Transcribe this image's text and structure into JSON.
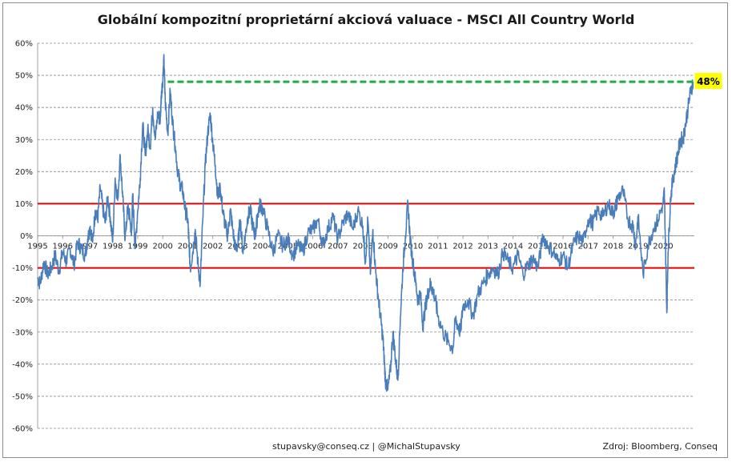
{
  "chart_data": {
    "type": "line",
    "title": "Globální kompozitní proprietární akciová valuace - MSCI All Country World",
    "xlabel": "",
    "ylabel": "",
    "x_ticks": [
      "1995",
      "1996",
      "1997",
      "1998",
      "1999",
      "2000",
      "2001",
      "2002",
      "2003",
      "2004",
      "2005",
      "2006",
      "2007",
      "2008",
      "2009",
      "2010",
      "2011",
      "2012",
      "2013",
      "2014",
      "2015",
      "2016",
      "2017",
      "2018",
      "2019",
      "2020"
    ],
    "xlim": [
      1995.0,
      2021.25
    ],
    "ylim": [
      -60,
      60
    ],
    "y_ticks": [
      60,
      50,
      40,
      30,
      20,
      10,
      0,
      -10,
      -20,
      -30,
      -40,
      -50,
      -60
    ],
    "y_tick_labels": [
      "60%",
      "50%",
      "40%",
      "30%",
      "20%",
      "10%",
      "0%",
      "-10%",
      "-20%",
      "-30%",
      "-40%",
      "-50%",
      "-60%"
    ],
    "grid": true,
    "series": [
      {
        "color": "#4a7ebb",
        "x": [
          1995.0,
          1995.1,
          1995.25,
          1995.4,
          1995.55,
          1995.7,
          1995.85,
          1996.0,
          1996.15,
          1996.3,
          1996.45,
          1996.6,
          1996.75,
          1996.9,
          1997.0,
          1997.1,
          1997.2,
          1997.3,
          1997.4,
          1997.5,
          1997.6,
          1997.7,
          1997.8,
          1997.9,
          1998.0,
          1998.1,
          1998.2,
          1998.3,
          1998.4,
          1998.5,
          1998.6,
          1998.7,
          1998.75,
          1998.8,
          1998.9,
          1999.0,
          1999.1,
          1999.2,
          1999.3,
          1999.4,
          1999.5,
          1999.6,
          1999.7,
          1999.8,
          1999.9,
          1999.95,
          2000.0,
          2000.05,
          2000.1,
          2000.2,
          2000.3,
          2000.4,
          2000.5,
          2000.6,
          2000.7,
          2000.8,
          2000.9,
          2001.0,
          2001.05,
          2001.1,
          2001.2,
          2001.3,
          2001.4,
          2001.5,
          2001.6,
          2001.7,
          2001.8,
          2001.9,
          2002.0,
          2002.1,
          2002.2,
          2002.3,
          2002.4,
          2002.5,
          2002.6,
          2002.7,
          2002.8,
          2002.9,
          2003.0,
          2003.1,
          2003.2,
          2003.3,
          2003.4,
          2003.5,
          2003.6,
          2003.7,
          2003.8,
          2003.9,
          2004.0,
          2004.2,
          2004.4,
          2004.6,
          2004.8,
          2005.0,
          2005.2,
          2005.4,
          2005.6,
          2005.8,
          2006.0,
          2006.2,
          2006.4,
          2006.6,
          2006.8,
          2007.0,
          2007.2,
          2007.4,
          2007.6,
          2007.8,
          2008.0,
          2008.1,
          2008.2,
          2008.3,
          2008.4,
          2008.5,
          2008.6,
          2008.7,
          2008.8,
          2008.85,
          2008.9,
          2009.0,
          2009.1,
          2009.2,
          2009.3,
          2009.4,
          2009.5,
          2009.6,
          2009.7,
          2009.8,
          2009.9,
          2010.0,
          2010.1,
          2010.2,
          2010.3,
          2010.4,
          2010.5,
          2010.6,
          2010.7,
          2010.8,
          2010.9,
          2011.0,
          2011.2,
          2011.4,
          2011.6,
          2011.7,
          2011.8,
          2011.9,
          2012.0,
          2012.2,
          2012.4,
          2012.6,
          2012.8,
          2013.0,
          2013.2,
          2013.4,
          2013.6,
          2013.8,
          2014.0,
          2014.2,
          2014.4,
          2014.6,
          2014.8,
          2015.0,
          2015.2,
          2015.4,
          2015.6,
          2015.8,
          2016.0,
          2016.2,
          2016.4,
          2016.6,
          2016.8,
          2017.0,
          2017.2,
          2017.4,
          2017.6,
          2017.8,
          2018.0,
          2018.1,
          2018.2,
          2018.4,
          2018.6,
          2018.8,
          2018.9,
          2019.0,
          2019.2,
          2019.4,
          2019.6,
          2019.8,
          2020.0,
          2020.05,
          2020.1,
          2020.15,
          2020.2,
          2020.3,
          2020.4,
          2020.5,
          2020.6,
          2020.7,
          2020.8,
          2020.9,
          2021.0,
          2021.1,
          2021.2
        ],
        "y": [
          -13,
          -15,
          -8,
          -12,
          -10,
          -6,
          -11,
          -5,
          -8,
          -4,
          -9,
          -2,
          -4,
          -6,
          -1,
          3,
          -2,
          8,
          5,
          15,
          9,
          4,
          12,
          6,
          -2,
          18,
          11,
          25,
          12,
          -1,
          9,
          5,
          0,
          13,
          -4,
          8,
          18,
          35,
          25,
          33,
          28,
          40,
          30,
          38,
          36,
          45,
          48,
          55,
          42,
          32,
          45,
          35,
          28,
          20,
          16,
          14,
          8,
          5,
          -2,
          -10,
          -5,
          2,
          -8,
          -15,
          5,
          22,
          32,
          38,
          29,
          22,
          12,
          15,
          8,
          3,
          0,
          8,
          2,
          -4,
          -3,
          5,
          -5,
          0,
          6,
          8,
          3,
          0,
          7,
          10,
          8,
          2,
          -5,
          0,
          -3,
          -1,
          -6,
          -3,
          -5,
          1,
          2,
          5,
          -3,
          2,
          6,
          -1,
          4,
          7,
          2,
          8,
          3,
          -8,
          5,
          -12,
          2,
          -10,
          -18,
          -25,
          -32,
          -38,
          -45,
          -48,
          -42,
          -30,
          -38,
          -45,
          -25,
          -10,
          0,
          10,
          -2,
          -8,
          -14,
          -20,
          -18,
          -28,
          -22,
          -18,
          -15,
          -17,
          -20,
          -25,
          -30,
          -33,
          -35,
          -26,
          -28,
          -30,
          -22,
          -20,
          -25,
          -18,
          -15,
          -12,
          -10,
          -12,
          -5,
          -8,
          -10,
          -6,
          -12,
          -9,
          -7,
          -10,
          0,
          -3,
          -5,
          -8,
          -6,
          -10,
          -3,
          0,
          -2,
          5,
          4,
          8,
          6,
          10,
          7,
          9,
          12,
          14,
          5,
          3,
          -3,
          6,
          -12,
          -3,
          2,
          5,
          10,
          14,
          -5,
          -24,
          -5,
          12,
          18,
          22,
          26,
          30,
          30,
          35,
          40,
          45,
          48
        ]
      }
    ],
    "hlines": [
      {
        "y": 10,
        "color": "#e00000"
      },
      {
        "y": -10,
        "color": "#e00000"
      }
    ],
    "annotations": [
      {
        "type": "dashed-line",
        "from_x": 2000.2,
        "to_x": 2021.2,
        "y": 48,
        "color": "#22aa44"
      },
      {
        "type": "label",
        "x": 2021.2,
        "y": 48,
        "text": "48%",
        "background": "#ffff00"
      }
    ],
    "footer_left": "stupavsky@conseq.cz  |  @MichalStupavsky",
    "footer_right": "Zdroj: Bloomberg, Conseq"
  }
}
